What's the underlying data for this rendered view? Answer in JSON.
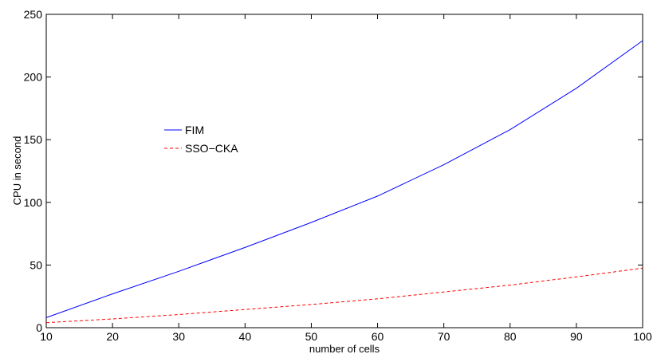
{
  "chart_data": {
    "type": "line",
    "title": "",
    "xlabel": "number of cells",
    "ylabel": "CPU in second",
    "xlim": [
      10,
      100
    ],
    "ylim": [
      0,
      250
    ],
    "xticks": [
      10,
      20,
      30,
      40,
      50,
      60,
      70,
      80,
      90,
      100
    ],
    "yticks": [
      0,
      50,
      100,
      150,
      200,
      250
    ],
    "grid": false,
    "legend_position": "center-left",
    "x": [
      10,
      20,
      30,
      40,
      50,
      60,
      70,
      80,
      90,
      100
    ],
    "series": [
      {
        "name": "FIM",
        "color": "#0000ff",
        "style": "solid",
        "values": [
          8,
          27,
          45,
          64,
          84,
          105,
          130,
          158,
          191,
          229
        ]
      },
      {
        "name": "SSO−CKA",
        "color": "#ff0000",
        "style": "dashed",
        "values": [
          4,
          7,
          10.5,
          14.5,
          18.5,
          23,
          28.5,
          34,
          40.5,
          47.5
        ]
      }
    ]
  }
}
